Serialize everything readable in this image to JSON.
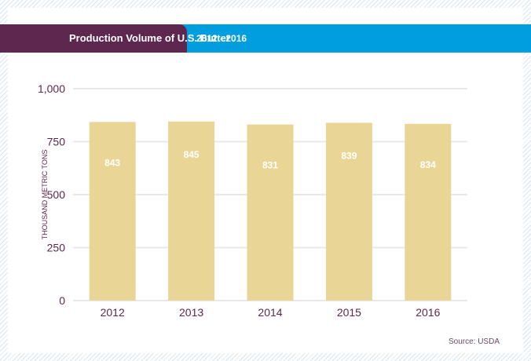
{
  "header": {
    "title": "Production Volume of U.S. Butter",
    "range": "2012 - 2016"
  },
  "colors": {
    "title_block": "#5d2750",
    "header_bar": "#009ddf",
    "bar": "#e9d696",
    "gridline": "#e8e8e8",
    "axis_text": "#5d2750"
  },
  "source": "Source: USDA",
  "chart_data": {
    "type": "bar",
    "title": "Production Volume of U.S. Butter",
    "subtitle": "2012 - 2016",
    "categories": [
      "2012",
      "2013",
      "2014",
      "2015",
      "2016"
    ],
    "values": [
      843,
      845,
      831,
      839,
      834
    ],
    "data_labels": [
      "843",
      "845",
      "831",
      "839",
      "834"
    ],
    "xlabel": "",
    "ylabel": "THOUSAND METRIC TONS",
    "ylim": [
      0,
      1000
    ],
    "yticks": [
      0,
      250,
      500,
      750,
      1000
    ],
    "ytick_labels": [
      "0",
      "250",
      "500",
      "750",
      "1,000"
    ],
    "grid": true,
    "legend": "none"
  }
}
